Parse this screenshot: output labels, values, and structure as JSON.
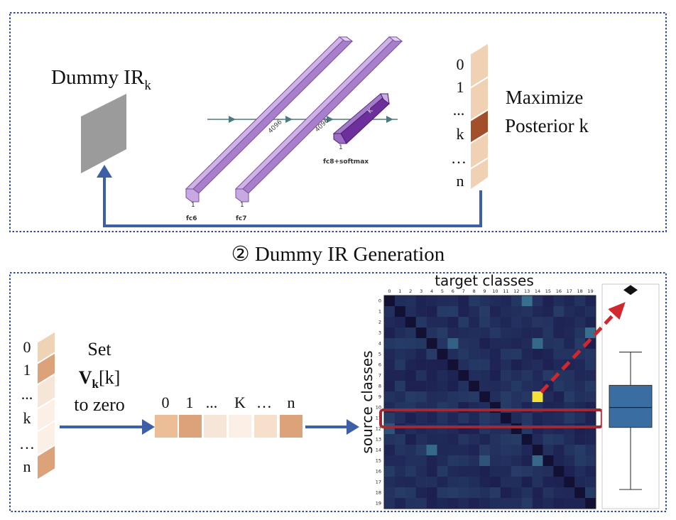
{
  "colors": {
    "panel_border": "#2f4a9a",
    "arrow_blue": "#3d5fa8",
    "layer_purple": "#b390d4",
    "layer_purple_dark": "#7a3fa6",
    "highlight_box": "#9e2a35",
    "red_arrow": "#d0282d",
    "boxplot_fill": "#3a6ea3",
    "heatmap_base": "#1e1b5e",
    "heatmap_peak": "#f4e23a"
  },
  "top_panel": {
    "dummy_label": "Dummy IR",
    "dummy_subscript": "k",
    "network": {
      "fc6_label": "fc6",
      "fc7_label": "fc7",
      "fc8_label": "fc8+softmax",
      "fc6_dim": "4096",
      "fc7_dim": "4096",
      "fc8_dim": "K",
      "depth_1": "1",
      "depth_2": "1",
      "depth_3": "1"
    },
    "posterior_vector": [
      "0",
      "1",
      "...",
      "k",
      "…",
      "n"
    ],
    "maximize_line1": "Maximize",
    "maximize_line2": "Posterior k"
  },
  "stage_caption": "② Dummy IR Generation",
  "bottom_panel": {
    "vector_labels": [
      "0",
      "1",
      "...",
      "k",
      "…",
      "n"
    ],
    "set_line1": "Set",
    "set_V": "V",
    "set_V_sub": "k",
    "set_bracket": "[k]",
    "set_line3": "to zero",
    "zeroed_vector_labels": [
      "0",
      "1",
      "...",
      "K",
      "…",
      "n"
    ],
    "heatmap": {
      "title": "target classes",
      "ylabel": "source classes",
      "col_ticks": [
        "0",
        "1",
        "2",
        "3",
        "4",
        "5",
        "6",
        "7",
        "8",
        "9",
        "10",
        "11",
        "12",
        "13",
        "14",
        "15",
        "16",
        "17",
        "18",
        "19"
      ],
      "row_ticks": [
        "0",
        "1",
        "2",
        "3",
        "4",
        "5",
        "6",
        "7",
        "8",
        "9",
        "10",
        "11",
        "12",
        "13",
        "14",
        "15",
        "16",
        "17",
        "18",
        "19"
      ],
      "highlighted_row": 11,
      "peak_cell": {
        "row": 9,
        "col": 14
      }
    }
  },
  "chart_data": {
    "type": "heatmap",
    "title": "target classes",
    "ylabel": "source classes",
    "x": [
      "0",
      "1",
      "2",
      "3",
      "4",
      "5",
      "6",
      "7",
      "8",
      "9",
      "10",
      "11",
      "12",
      "13",
      "14",
      "15",
      "16",
      "17",
      "18",
      "19"
    ],
    "y": [
      "0",
      "1",
      "2",
      "3",
      "4",
      "5",
      "6",
      "7",
      "8",
      "9",
      "10",
      "11",
      "12",
      "13",
      "14",
      "15",
      "16",
      "17",
      "18",
      "19"
    ],
    "bright_cells": [
      {
        "row": 0,
        "col": 13,
        "level": 0.45
      },
      {
        "row": 3,
        "col": 19,
        "level": 0.45
      },
      {
        "row": 4,
        "col": 14,
        "level": 0.42
      },
      {
        "row": 4,
        "col": 6,
        "level": 0.38
      },
      {
        "row": 9,
        "col": 14,
        "level": 1.0
      },
      {
        "row": 12,
        "col": 0,
        "level": 0.32
      },
      {
        "row": 14,
        "col": 4,
        "level": 0.42
      },
      {
        "row": 15,
        "col": 14,
        "level": 0.42
      },
      {
        "row": 15,
        "col": 9,
        "level": 0.32
      }
    ],
    "boxplot": {
      "min": 0.08,
      "q1": 0.36,
      "median": 0.45,
      "q3": 0.55,
      "max": 0.7,
      "outlier": 0.98
    }
  }
}
